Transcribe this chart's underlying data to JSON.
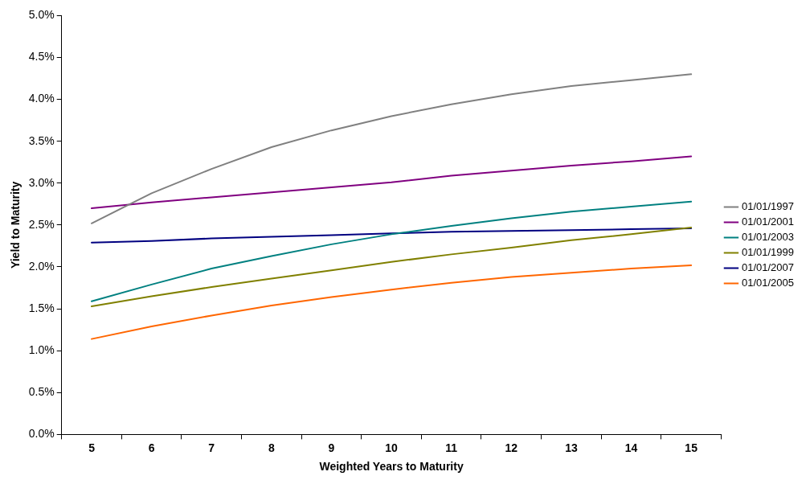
{
  "chart_data": {
    "type": "line",
    "xlabel": "Weighted Years to Maturity",
    "ylabel": "Yield to Maturity",
    "categories": [
      "5",
      "6",
      "7",
      "8",
      "9",
      "10",
      "11",
      "12",
      "13",
      "14",
      "15"
    ],
    "series": [
      {
        "name": "01/01/1997",
        "color": "#808080",
        "values": [
          2.52,
          2.88,
          3.17,
          3.43,
          3.63,
          3.8,
          3.94,
          4.06,
          4.16,
          4.23,
          4.3
        ]
      },
      {
        "name": "01/01/2001",
        "color": "#800080",
        "values": [
          2.7,
          2.77,
          2.83,
          2.89,
          2.95,
          3.01,
          3.09,
          3.15,
          3.21,
          3.26,
          3.32
        ]
      },
      {
        "name": "01/01/2003",
        "color": "#008080",
        "values": [
          1.59,
          1.79,
          1.98,
          2.13,
          2.27,
          2.39,
          2.49,
          2.58,
          2.66,
          2.72,
          2.78
        ]
      },
      {
        "name": "01/01/1999",
        "color": "#808000",
        "values": [
          1.53,
          1.65,
          1.76,
          1.86,
          1.96,
          2.06,
          2.15,
          2.23,
          2.32,
          2.39,
          2.47
        ]
      },
      {
        "name": "01/01/2007",
        "color": "#000080",
        "values": [
          2.29,
          2.31,
          2.34,
          2.36,
          2.38,
          2.4,
          2.42,
          2.43,
          2.44,
          2.45,
          2.46
        ]
      },
      {
        "name": "01/01/2005",
        "color": "#ff6600",
        "values": [
          1.14,
          1.29,
          1.42,
          1.54,
          1.64,
          1.73,
          1.81,
          1.88,
          1.93,
          1.98,
          2.02
        ]
      }
    ],
    "ylim": [
      0,
      5
    ],
    "yticks": [
      {
        "value": 0,
        "label": "0.0%"
      },
      {
        "value": 0.5,
        "label": "0.5%"
      },
      {
        "value": 1,
        "label": "1.0%"
      },
      {
        "value": 1.5,
        "label": "1.5%"
      },
      {
        "value": 2,
        "label": "2.0%"
      },
      {
        "value": 2.5,
        "label": "2.5%"
      },
      {
        "value": 3,
        "label": "3.0%"
      },
      {
        "value": 3.5,
        "label": "3.5%"
      },
      {
        "value": 4,
        "label": "4.0%"
      },
      {
        "value": 4.5,
        "label": "4.5%"
      },
      {
        "value": 5,
        "label": "5.0%"
      }
    ],
    "grid": false,
    "legend": "right",
    "marker": "none",
    "line_style": "solid"
  }
}
